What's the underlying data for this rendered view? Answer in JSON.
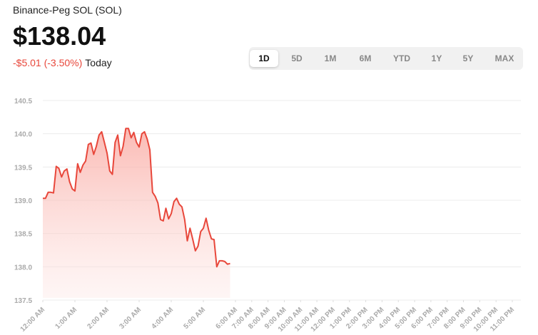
{
  "header": {
    "title": "Binance-Peg SOL (SOL)",
    "price": "$138.04",
    "change": "-$5.01 (-3.50%)",
    "period": "Today",
    "tabs": [
      "1D",
      "5D",
      "1M",
      "6M",
      "YTD",
      "1Y",
      "5Y",
      "MAX"
    ],
    "selected_tab": "1D"
  },
  "chart_data": {
    "type": "line",
    "color": "#e8473b",
    "area": true,
    "grid": true,
    "x": [
      0,
      5,
      10,
      15,
      20,
      25,
      30,
      35,
      40,
      45,
      50,
      55,
      60,
      65,
      70,
      75,
      80,
      85,
      90,
      95,
      100,
      105,
      110,
      115,
      120,
      125,
      130,
      135,
      140,
      145,
      150,
      155,
      160,
      165,
      170,
      175,
      180,
      185,
      190,
      195,
      200,
      205,
      210,
      215,
      220,
      225,
      230,
      235,
      240,
      245,
      250,
      255,
      260,
      265,
      270,
      275,
      280,
      285,
      290,
      295,
      300,
      305,
      310,
      315,
      320,
      325,
      330,
      335,
      340,
      345,
      350
    ],
    "values": [
      139.03,
      139.03,
      139.12,
      139.12,
      139.11,
      139.51,
      139.48,
      139.35,
      139.44,
      139.47,
      139.28,
      139.17,
      139.14,
      139.55,
      139.42,
      139.53,
      139.59,
      139.84,
      139.86,
      139.69,
      139.81,
      139.98,
      140.03,
      139.87,
      139.71,
      139.44,
      139.39,
      139.87,
      139.98,
      139.67,
      139.81,
      140.08,
      140.08,
      139.94,
      140.02,
      139.87,
      139.8,
      140.0,
      140.03,
      139.92,
      139.76,
      139.12,
      139.06,
      138.96,
      138.71,
      138.69,
      138.88,
      138.72,
      138.8,
      138.98,
      139.03,
      138.94,
      138.9,
      138.71,
      138.39,
      138.58,
      138.42,
      138.24,
      138.31,
      138.53,
      138.58,
      138.73,
      138.55,
      138.42,
      138.41,
      138.0,
      138.09,
      138.09,
      138.08,
      138.04,
      138.05
    ],
    "ylim": [
      137.5,
      140.5
    ],
    "yticks": [
      137.5,
      138.0,
      138.5,
      139.0,
      139.5,
      140.0,
      140.5
    ],
    "xlim": [
      0,
      1380
    ],
    "xticks": [
      {
        "value": 0,
        "label": "12:00 AM"
      },
      {
        "value": 60,
        "label": "1:00 AM"
      },
      {
        "value": 120,
        "label": "2:00 AM"
      },
      {
        "value": 180,
        "label": "3:00 AM"
      },
      {
        "value": 240,
        "label": "4:00 AM"
      },
      {
        "value": 300,
        "label": "5:00 AM"
      },
      {
        "value": 360,
        "label": "6:00 AM"
      },
      {
        "value": 420,
        "label": "7:00 AM"
      },
      {
        "value": 480,
        "label": "8:00 AM"
      },
      {
        "value": 540,
        "label": "9:00 AM"
      },
      {
        "value": 600,
        "label": "10:00 AM"
      },
      {
        "value": 660,
        "label": "11:00 AM"
      },
      {
        "value": 720,
        "label": "12:00 PM"
      },
      {
        "value": 780,
        "label": "1:00 PM"
      },
      {
        "value": 840,
        "label": "2:00 PM"
      },
      {
        "value": 900,
        "label": "3:00 PM"
      },
      {
        "value": 960,
        "label": "4:00 PM"
      },
      {
        "value": 1020,
        "label": "5:00 PM"
      },
      {
        "value": 1080,
        "label": "6:00 PM"
      },
      {
        "value": 1140,
        "label": "7:00 PM"
      },
      {
        "value": 1200,
        "label": "8:00 PM"
      },
      {
        "value": 1260,
        "label": "9:00 PM"
      },
      {
        "value": 1320,
        "label": "10:00 PM"
      },
      {
        "value": 1380,
        "label": "11:00 PM"
      }
    ]
  }
}
